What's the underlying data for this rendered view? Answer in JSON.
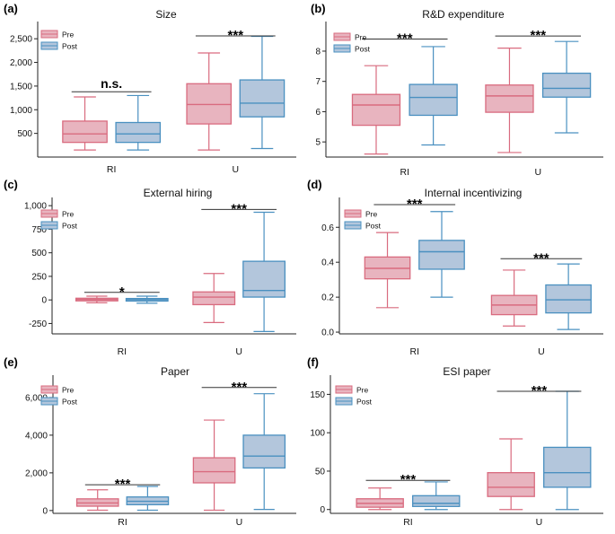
{
  "colors": {
    "pre_fill": "#e8b4bf",
    "pre_line": "#d96b7f",
    "post_fill": "#b3c6dc",
    "post_line": "#4a90c0",
    "axis": "#222222"
  },
  "legend": {
    "pre": "Pre",
    "post": "Post"
  },
  "chart_data": [
    {
      "type": "boxplot",
      "panel": "(a)",
      "title": "Size",
      "categories": [
        "RI",
        "U"
      ],
      "ylim": [
        0,
        2750
      ],
      "yticks": [
        {
          "v": 500,
          "label": "500"
        },
        {
          "v": 1000,
          "label": "1,000"
        },
        {
          "v": 1500,
          "label": "1,500"
        },
        {
          "v": 2000,
          "label": "2,000"
        },
        {
          "v": 2500,
          "label": "2,500"
        }
      ],
      "legend_position": "top-left",
      "series": [
        {
          "name": "Pre",
          "boxes": [
            {
              "min": 150,
              "q1": 310,
              "median": 490,
              "q3": 760,
              "max": 1270
            },
            {
              "min": 150,
              "q1": 700,
              "median": 1110,
              "q3": 1550,
              "max": 2200
            }
          ]
        },
        {
          "name": "Post",
          "boxes": [
            {
              "min": 150,
              "q1": 310,
              "median": 490,
              "q3": 730,
              "max": 1300
            },
            {
              "min": 180,
              "q1": 850,
              "median": 1140,
              "q3": 1630,
              "max": 2550
            }
          ]
        }
      ],
      "significance": [
        {
          "label": "n.s.",
          "y": 1380
        },
        {
          "label": "***",
          "y": 2560
        }
      ]
    },
    {
      "type": "boxplot",
      "panel": "(b)",
      "title": "R&D expenditure",
      "categories": [
        "RI",
        "U"
      ],
      "ylim": [
        4.5,
        8.8
      ],
      "yticks": [
        {
          "v": 5,
          "label": "5"
        },
        {
          "v": 6,
          "label": "6"
        },
        {
          "v": 7,
          "label": "7"
        },
        {
          "v": 8,
          "label": "8"
        }
      ],
      "legend_position": "top-left",
      "series": [
        {
          "name": "Pre",
          "boxes": [
            {
              "min": 4.6,
              "q1": 5.55,
              "median": 6.22,
              "q3": 6.57,
              "max": 7.52
            },
            {
              "min": 4.65,
              "q1": 5.98,
              "median": 6.52,
              "q3": 6.88,
              "max": 8.1
            }
          ]
        },
        {
          "name": "Post",
          "boxes": [
            {
              "min": 4.9,
              "q1": 5.88,
              "median": 6.47,
              "q3": 6.9,
              "max": 8.15
            },
            {
              "min": 5.3,
              "q1": 6.48,
              "median": 6.77,
              "q3": 7.27,
              "max": 8.32
            }
          ]
        }
      ],
      "significance": [
        {
          "label": "***",
          "y": 8.4
        },
        {
          "label": "***",
          "y": 8.5
        }
      ]
    },
    {
      "type": "boxplot",
      "panel": "(c)",
      "title": "External hiring",
      "categories": [
        "RI",
        "U"
      ],
      "ylim": [
        -360,
        1030
      ],
      "yticks": [
        {
          "v": -250,
          "label": "-250"
        },
        {
          "v": 0,
          "label": "0"
        },
        {
          "v": 250,
          "label": "250"
        },
        {
          "v": 500,
          "label": "500"
        },
        {
          "v": 750,
          "label": "750"
        },
        {
          "v": 1000,
          "label": "1,000"
        }
      ],
      "legend_position": "top-left",
      "series": [
        {
          "name": "Pre",
          "boxes": [
            {
              "min": -30,
              "q1": -10,
              "median": 5,
              "q3": 18,
              "max": 40
            },
            {
              "min": -240,
              "q1": -50,
              "median": 30,
              "q3": 85,
              "max": 280
            }
          ]
        },
        {
          "name": "Post",
          "boxes": [
            {
              "min": -35,
              "q1": -12,
              "median": 3,
              "q3": 15,
              "max": 40
            },
            {
              "min": -335,
              "q1": 30,
              "median": 100,
              "q3": 410,
              "max": 930
            }
          ]
        }
      ],
      "significance": [
        {
          "label": "*",
          "y": 80
        },
        {
          "label": "***",
          "y": 960
        }
      ]
    },
    {
      "type": "boxplot",
      "panel": "(d)",
      "title": "Internal incentivizing",
      "categories": [
        "RI",
        "U"
      ],
      "ylim": [
        -0.01,
        0.74
      ],
      "yticks": [
        {
          "v": 0,
          "label": "0.0"
        },
        {
          "v": 0.2,
          "label": "0.2"
        },
        {
          "v": 0.4,
          "label": "0.4"
        },
        {
          "v": 0.6,
          "label": "0.6"
        }
      ],
      "legend_position": "top-left",
      "series": [
        {
          "name": "Pre",
          "boxes": [
            {
              "min": 0.14,
              "q1": 0.305,
              "median": 0.365,
              "q3": 0.43,
              "max": 0.57
            },
            {
              "min": 0.035,
              "q1": 0.1,
              "median": 0.155,
              "q3": 0.21,
              "max": 0.355
            }
          ]
        },
        {
          "name": "Post",
          "boxes": [
            {
              "min": 0.2,
              "q1": 0.36,
              "median": 0.46,
              "q3": 0.525,
              "max": 0.69
            },
            {
              "min": 0.015,
              "q1": 0.11,
              "median": 0.185,
              "q3": 0.27,
              "max": 0.39
            }
          ]
        }
      ],
      "significance": [
        {
          "label": "***",
          "y": 0.73
        },
        {
          "label": "***",
          "y": 0.42
        }
      ]
    },
    {
      "type": "boxplot",
      "panel": "(e)",
      "title": "Paper",
      "categories": [
        "RI",
        "U"
      ],
      "ylim": [
        -150,
        6900
      ],
      "yticks": [
        {
          "v": 0,
          "label": "0"
        },
        {
          "v": 2000,
          "label": "2,000"
        },
        {
          "v": 4000,
          "label": "4,000"
        },
        {
          "v": 6000,
          "label": "6,000"
        }
      ],
      "legend_position": "top-left",
      "series": [
        {
          "name": "Pre",
          "boxes": [
            {
              "min": 20,
              "q1": 230,
              "median": 400,
              "q3": 620,
              "max": 1100
            },
            {
              "min": 20,
              "q1": 1470,
              "median": 2060,
              "q3": 2800,
              "max": 4800
            }
          ]
        },
        {
          "name": "Post",
          "boxes": [
            {
              "min": 20,
              "q1": 310,
              "median": 490,
              "q3": 720,
              "max": 1280
            },
            {
              "min": 60,
              "q1": 2260,
              "median": 2890,
              "q3": 4000,
              "max": 6200
            }
          ]
        }
      ],
      "significance": [
        {
          "label": "***",
          "y": 1370
        },
        {
          "label": "***",
          "y": 6530
        }
      ]
    },
    {
      "type": "boxplot",
      "panel": "(f)",
      "title": "ESI paper",
      "categories": [
        "RI",
        "U"
      ],
      "ylim": [
        -5,
        168
      ],
      "yticks": [
        {
          "v": 0,
          "label": "0"
        },
        {
          "v": 50,
          "label": "50"
        },
        {
          "v": 100,
          "label": "100"
        },
        {
          "v": 150,
          "label": "150"
        }
      ],
      "legend_position": "top-left",
      "series": [
        {
          "name": "Pre",
          "boxes": [
            {
              "min": 0,
              "q1": 3,
              "median": 8,
              "q3": 14,
              "max": 28
            },
            {
              "min": 0,
              "q1": 17,
              "median": 29,
              "q3": 48,
              "max": 92
            }
          ]
        },
        {
          "name": "Post",
          "boxes": [
            {
              "min": 0,
              "q1": 4,
              "median": 8,
              "q3": 18,
              "max": 36
            },
            {
              "min": 0,
              "q1": 29,
              "median": 48,
              "q3": 81,
              "max": 154
            }
          ]
        }
      ],
      "significance": [
        {
          "label": "***",
          "y": 38
        },
        {
          "label": "***",
          "y": 154
        }
      ]
    }
  ]
}
